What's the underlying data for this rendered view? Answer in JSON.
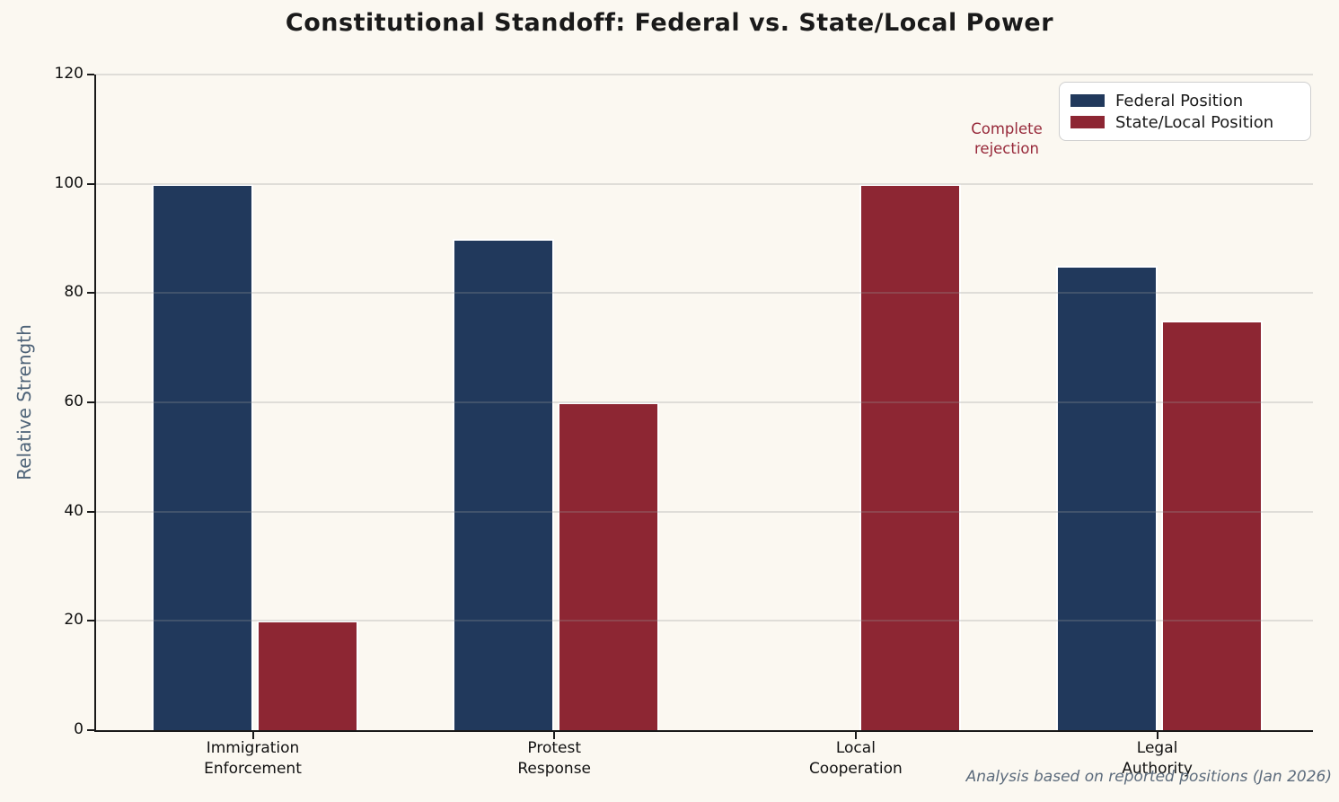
{
  "title": "Constitutional Standoff: Federal vs. State/Local Power",
  "caption": "Analysis based on reported positions (Jan 2026)",
  "annotation": {
    "text": "Complete\nrejection",
    "color": "#97293a"
  },
  "legend": {
    "items": [
      {
        "label": "Federal Position",
        "color": "#21395c"
      },
      {
        "label": "State/Local Position",
        "color": "#8d2633"
      }
    ]
  },
  "colors": {
    "background": "#fbf8f1",
    "federal": "#21395c",
    "state_local": "#8d2633",
    "axis": "#1a1a1a",
    "ylabel_text": "#4e6378",
    "caption_text": "#5c6b7c"
  },
  "chart_data": {
    "type": "bar",
    "title": "Constitutional Standoff: Federal vs. State/Local Power",
    "ylabel": "Relative Strength",
    "xlabel": "",
    "categories": [
      "Immigration\nEnforcement",
      "Protest\nResponse",
      "Local\nCooperation",
      "Legal\nAuthority"
    ],
    "series": [
      {
        "name": "Federal Position",
        "color": "#21395c",
        "values": [
          100,
          90,
          0,
          85
        ]
      },
      {
        "name": "State/Local Position",
        "color": "#8d2633",
        "values": [
          20,
          60,
          100,
          75
        ]
      }
    ],
    "ylim": [
      0,
      120
    ],
    "yticks": [
      0,
      20,
      40,
      60,
      80,
      100,
      120
    ],
    "grid": true,
    "grid_over_bars": true,
    "bar_edge_color": "#ffffff",
    "legend_position": "upper right",
    "annotation": {
      "text": "Complete\nrejection",
      "near_category": "Local\nCooperation",
      "series": "Federal Position"
    }
  }
}
